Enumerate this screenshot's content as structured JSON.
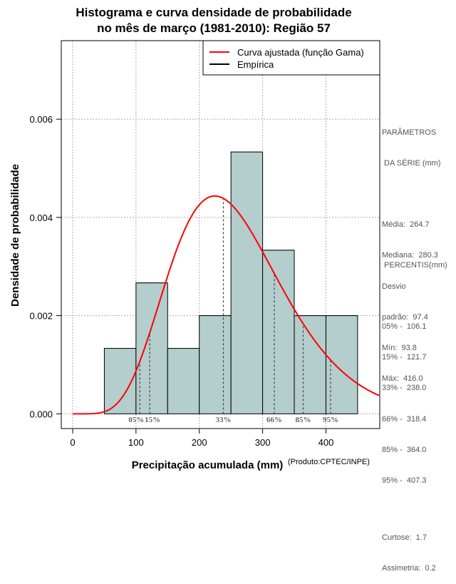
{
  "chart_data": {
    "type": "bar",
    "title_line1": "Histograma e curva densidade de probabilidade",
    "title_line2": "no mês de março (1981-2010): Região 57",
    "xlabel": "Precipitação acumulada (mm)",
    "ylabel": "Densidade de probabilidade",
    "credit": "(Produto:CPTEC/INPE)",
    "xlim": [
      -18,
      485
    ],
    "ylim": [
      -0.0003,
      0.0076
    ],
    "x_ticks": [
      0,
      100,
      200,
      300,
      400
    ],
    "y_ticks": [
      0.0,
      0.002,
      0.004,
      0.006
    ],
    "y_tick_labels": [
      "0.000",
      "0.002",
      "0.004",
      "0.006"
    ],
    "bins": [
      {
        "start": 50,
        "end": 100,
        "density": 0.001333
      },
      {
        "start": 100,
        "end": 150,
        "density": 0.002667
      },
      {
        "start": 150,
        "end": 200,
        "density": 0.001333
      },
      {
        "start": 200,
        "end": 250,
        "density": 0.002
      },
      {
        "start": 250,
        "end": 300,
        "density": 0.005333
      },
      {
        "start": 300,
        "end": 350,
        "density": 0.003333
      },
      {
        "start": 350,
        "end": 400,
        "density": 0.002
      },
      {
        "start": 400,
        "end": 450,
        "density": 0.002
      }
    ],
    "bar_color": "#b4cdcd",
    "curve_color": "#ff0000",
    "gamma": {
      "shape": 7.4,
      "rate": 0.0285
    },
    "percentile_markers": [
      {
        "label": "05%",
        "x": 106.1
      },
      {
        "label": "15%",
        "x": 121.7
      },
      {
        "label": "33%",
        "x": 238.0
      },
      {
        "label": "66%",
        "x": 318.4
      },
      {
        "label": "85%",
        "x": 364.0
      },
      {
        "label": "95%",
        "x": 407.3
      }
    ],
    "legend": {
      "position": "top-right",
      "entries": [
        {
          "label": "Curva ajustada (função Gama)",
          "color": "#ff0000"
        },
        {
          "label": "Empírica",
          "color": "#000000"
        }
      ]
    }
  },
  "stats_panel": {
    "heading_line1": "PARÂMETROS",
    "heading_line2": " DA SÉRIE (mm)",
    "lines": [
      "Média:  264.7",
      "Mediana:  280.3",
      "Desvio",
      "padrão:  97.4",
      "Mín:  93.8",
      "Máx:  416.0"
    ]
  },
  "percentiles_panel": {
    "heading": " PERCENTIS(mm)",
    "lines": [
      "05% -  106.1",
      "15% -  121.7",
      "33% -  238.0",
      "66% -  318.4",
      "85% -  364.0",
      "95% -  407.3"
    ]
  },
  "shape_panel": {
    "lines": [
      "Curtose:  1.7",
      "Assimetria:  0.2"
    ]
  }
}
